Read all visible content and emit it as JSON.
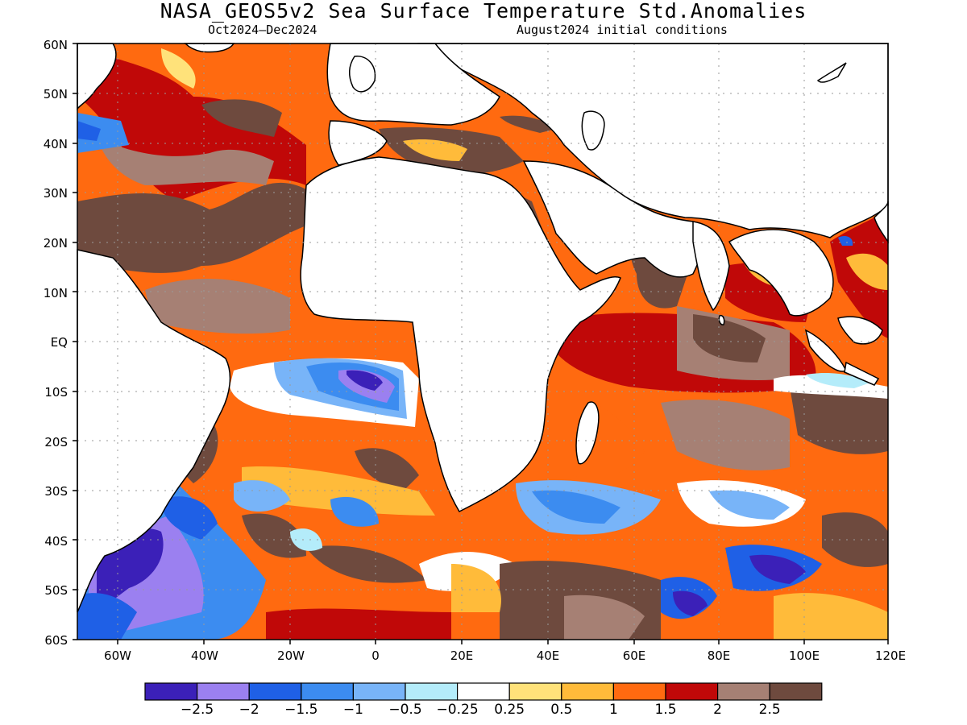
{
  "header": {
    "title": "NASA_GEOS5v2 Sea Surface Temperature Std.Anomalies",
    "period": "Oct2024–Dec2024",
    "init": "August2024 initial conditions"
  },
  "map": {
    "lat_labels": [
      "60N",
      "50N",
      "40N",
      "30N",
      "20N",
      "10N",
      "EQ",
      "10S",
      "20S",
      "30S",
      "40S",
      "50S",
      "60S"
    ],
    "lon_labels": [
      "60W",
      "40W",
      "20W",
      "0",
      "20E",
      "40E",
      "60E",
      "80E",
      "100E",
      "120E"
    ],
    "region_lon_range": [
      -70,
      120
    ],
    "region_lat_range": [
      -60,
      60
    ]
  },
  "colorbar": {
    "colors": [
      "#3b20b8",
      "#9b80f0",
      "#1f60e6",
      "#3c8cf0",
      "#78b4f8",
      "#b4ecfa",
      "#ffffff",
      "#ffe27a",
      "#ffbb3a",
      "#ff6a10",
      "#c00808",
      "#a68074",
      "#6e4a3e"
    ],
    "labels": [
      "−2.5",
      "−2",
      "−1.5",
      "−1",
      "−0.5",
      "−0.25",
      "0.25",
      "0.5",
      "1",
      "1.5",
      "2",
      "2.5"
    ]
  }
}
